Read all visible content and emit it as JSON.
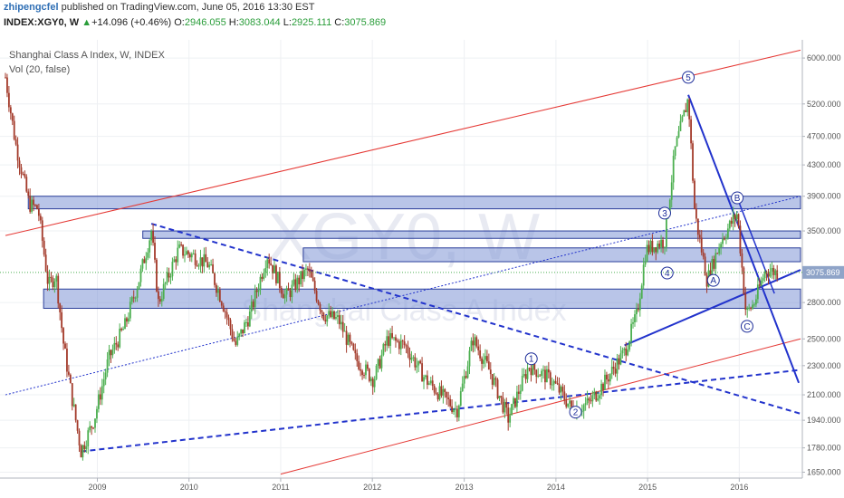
{
  "header": {
    "publisher": "zhipengcfel",
    "published_text": "published on TradingView.com, June 05, 2016 13:30 EST",
    "symbol": "INDEX:XGY0, W",
    "change_arrow": "▲",
    "change": "+14.096 (+0.46%)",
    "o_label": "O:",
    "o_value": "2946.055",
    "h_label": "H:",
    "h_value": "3083.044",
    "l_label": "L:",
    "l_value": "2925.111",
    "c_label": "C:",
    "c_value": "3075.869"
  },
  "legend": {
    "title": "Shanghai Class A Index, W, INDEX",
    "volume": "Vol (20, false)"
  },
  "watermark": {
    "symbol": "XGY0, W",
    "name": "Shanghai Class A Index"
  },
  "colors": {
    "up": "#4caf50",
    "down": "#a33a2a",
    "zone_fill": "#7f95d6",
    "zone_stroke": "#2c3f9a",
    "trend_blue": "#2233cc",
    "channel_red": "#e53935",
    "last_price_tag": "#8fa4c8"
  },
  "chart_data": {
    "type": "candlestick",
    "title": "Shanghai Class A Index, W, INDEX",
    "xaxis_ticks": [
      "2009",
      "2010",
      "2011",
      "2012",
      "2013",
      "2014",
      "2015",
      "2016"
    ],
    "yaxis_ticks": [
      "6000.000",
      "5200.000",
      "4700.000",
      "4300.000",
      "3900.000",
      "3500.000",
      "3075.869",
      "2800.000",
      "2500.000",
      "2300.000",
      "2100.000",
      "1940.000",
      "1780.000",
      "1650.000"
    ],
    "y_scale": "log",
    "ylim": [
      1620,
      6350
    ],
    "last_price": 3075.869,
    "price_path": [
      [
        "2008-01-01",
        5650
      ],
      [
        "2008-02-10",
        4600
      ],
      [
        "2008-04-05",
        3800
      ],
      [
        "2008-05-10",
        3750
      ],
      [
        "2008-06-20",
        2950
      ],
      [
        "2008-07-20",
        3050
      ],
      [
        "2008-08-20",
        2450
      ],
      [
        "2008-09-20",
        2100
      ],
      [
        "2008-10-28",
        1760
      ],
      [
        "2008-12-20",
        1950
      ],
      [
        "2009-02-15",
        2350
      ],
      [
        "2009-04-20",
        2600
      ],
      [
        "2009-06-15",
        3000
      ],
      [
        "2009-08-04",
        3500
      ],
      [
        "2009-09-01",
        2800
      ],
      [
        "2009-11-20",
        3300
      ],
      [
        "2010-01-10",
        3250
      ],
      [
        "2010-03-20",
        3150
      ],
      [
        "2010-05-15",
        2800
      ],
      [
        "2010-07-05",
        2450
      ],
      [
        "2010-09-01",
        2700
      ],
      [
        "2010-11-08",
        3250
      ],
      [
        "2011-01-20",
        2850
      ],
      [
        "2011-04-18",
        3100
      ],
      [
        "2011-06-20",
        2700
      ],
      [
        "2011-08-20",
        2650
      ],
      [
        "2011-10-25",
        2350
      ],
      [
        "2012-01-06",
        2200
      ],
      [
        "2012-03-01",
        2500
      ],
      [
        "2012-05-10",
        2450
      ],
      [
        "2012-08-01",
        2200
      ],
      [
        "2012-12-03",
        2000
      ],
      [
        "2013-02-05",
        2500
      ],
      [
        "2013-04-15",
        2250
      ],
      [
        "2013-06-25",
        1950
      ],
      [
        "2013-09-15",
        2300
      ],
      [
        "2013-12-15",
        2200
      ],
      [
        "2014-03-10",
        2000
      ],
      [
        "2014-05-15",
        2050
      ],
      [
        "2014-07-20",
        2200
      ],
      [
        "2014-10-01",
        2400
      ],
      [
        "2014-11-20",
        2700
      ],
      [
        "2014-12-25",
        3300
      ],
      [
        "2015-03-10",
        3400
      ],
      [
        "2015-04-20",
        4500
      ],
      [
        "2015-06-12",
        5300
      ],
      [
        "2015-07-08",
        3700
      ],
      [
        "2015-08-26",
        3000
      ],
      [
        "2015-10-20",
        3400
      ],
      [
        "2015-12-24",
        3700
      ],
      [
        "2016-01-28",
        2700
      ],
      [
        "2016-03-01",
        2800
      ],
      [
        "2016-04-15",
        3100
      ],
      [
        "2016-06-03",
        3076
      ]
    ],
    "zones": [
      {
        "from": "2008-04-01",
        "to": "2016-09-01",
        "low": 3750,
        "high": 3900
      },
      {
        "from": "2009-07-01",
        "to": "2016-09-01",
        "low": 3420,
        "high": 3500
      },
      {
        "from": "2011-04-01",
        "to": "2016-09-01",
        "low": 3180,
        "high": 3320
      },
      {
        "from": "2008-06-01",
        "to": "2016-09-01",
        "low": 2750,
        "high": 2920
      }
    ],
    "wave_labels": [
      {
        "label": "5",
        "date": "2015-06-12",
        "value": 5650
      },
      {
        "label": "3",
        "date": "2015-03-10",
        "value": 3700
      },
      {
        "label": "4",
        "date": "2015-03-20",
        "value": 3070
      },
      {
        "label": "B",
        "date": "2015-12-24",
        "value": 3880
      },
      {
        "label": "A",
        "date": "2015-09-20",
        "value": 3000
      },
      {
        "label": "C",
        "date": "2016-02-01",
        "value": 2600
      },
      {
        "label": "1",
        "date": "2013-09-25",
        "value": 2350
      },
      {
        "label": "2",
        "date": "2014-03-20",
        "value": 1990
      }
    ]
  }
}
